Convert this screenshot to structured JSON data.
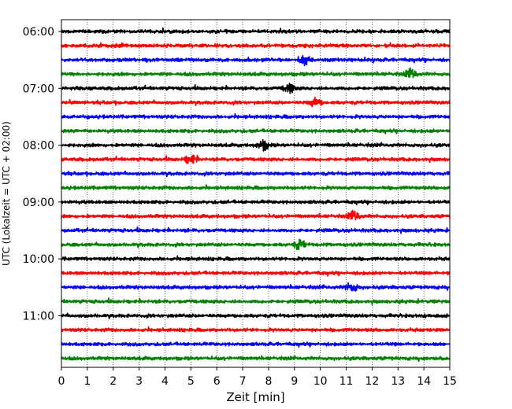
{
  "chart_data": {
    "type": "line",
    "subtype": "helicorder",
    "xlabel": "Zeit  [min]",
    "ylabel": "UTC (Lokalzeit = UTC + 02:00)",
    "xlim": [
      0,
      15
    ],
    "x_ticks": [
      "0",
      "1",
      "2",
      "3",
      "4",
      "5",
      "6",
      "7",
      "8",
      "9",
      "10",
      "11",
      "12",
      "13",
      "14",
      "15"
    ],
    "y_tick_labels": [
      "06:00",
      "07:00",
      "08:00",
      "09:00",
      "10:00",
      "11:00"
    ],
    "grid": {
      "x": "dotted vertical lines at each minute",
      "y": false
    },
    "trace_colors": [
      "#000000",
      "#ff0000",
      "#0000ff",
      "#008000"
    ],
    "rows": [
      {
        "start": "06:00",
        "color": "#000000"
      },
      {
        "start": "06:15",
        "color": "#ff0000"
      },
      {
        "start": "06:30",
        "color": "#0000ff"
      },
      {
        "start": "06:45",
        "color": "#008000"
      },
      {
        "start": "07:00",
        "color": "#000000"
      },
      {
        "start": "07:15",
        "color": "#ff0000"
      },
      {
        "start": "07:30",
        "color": "#0000ff"
      },
      {
        "start": "07:45",
        "color": "#008000"
      },
      {
        "start": "08:00",
        "color": "#000000"
      },
      {
        "start": "08:15",
        "color": "#ff0000"
      },
      {
        "start": "08:30",
        "color": "#0000ff"
      },
      {
        "start": "08:45",
        "color": "#008000"
      },
      {
        "start": "09:00",
        "color": "#000000"
      },
      {
        "start": "09:15",
        "color": "#ff0000"
      },
      {
        "start": "09:30",
        "color": "#0000ff"
      },
      {
        "start": "09:45",
        "color": "#008000"
      },
      {
        "start": "10:00",
        "color": "#000000"
      },
      {
        "start": "10:15",
        "color": "#ff0000"
      },
      {
        "start": "10:30",
        "color": "#0000ff"
      },
      {
        "start": "10:45",
        "color": "#008000"
      },
      {
        "start": "11:00",
        "color": "#000000"
      },
      {
        "start": "11:15",
        "color": "#ff0000"
      },
      {
        "start": "11:30",
        "color": "#0000ff"
      },
      {
        "start": "11:45",
        "color": "#008000"
      }
    ],
    "notable_events": [
      {
        "row": "06:30",
        "minute": 9.4
      },
      {
        "row": "06:45",
        "minute": 13.5
      },
      {
        "row": "07:00",
        "minute": 8.8
      },
      {
        "row": "07:15",
        "minute": 9.8
      },
      {
        "row": "08:00",
        "minute": 7.8
      },
      {
        "row": "08:15",
        "minute": 5.0
      },
      {
        "row": "09:15",
        "minute": 11.3
      },
      {
        "row": "09:45",
        "minute": 9.2
      },
      {
        "row": "10:30",
        "minute": 11.2
      }
    ]
  }
}
